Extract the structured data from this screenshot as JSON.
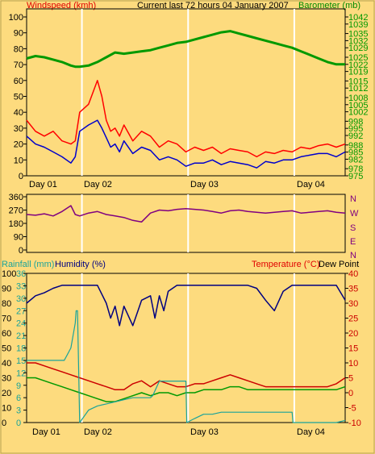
{
  "header": {
    "windspeed_label": "Windspeed (kmh)",
    "title": "Current last 72 hours 04 January 2007",
    "barometer_label": "Barometer (mb)"
  },
  "middle": {
    "compass": [
      "N",
      "W",
      "S",
      "E",
      "N"
    ]
  },
  "lower_header": {
    "rainfall_label": "Rainfall (mm)",
    "humidity_label": "Humidity (%)",
    "temperature_label": "Temperature (°C)",
    "dewpoint_label": "Dew Point"
  },
  "day_labels": [
    "Day 01",
    "Day 02",
    "Day 03",
    "Day 04"
  ],
  "colors": {
    "background": "#fddb7e",
    "wind_gust": "#ff0000",
    "wind_avg": "#0000cc",
    "barometer": "#009900",
    "direction": "#800080",
    "humidity": "#000080",
    "temperature": "#cc0000",
    "dewpoint": "#009900",
    "rainfall": "#1aa39a"
  },
  "chart_data": [
    {
      "type": "line",
      "x": "hours over last 72 hours",
      "x_ticks": [
        "Day 01",
        "Day 02",
        "Day 03",
        "Day 04"
      ],
      "x_range_hours": [
        0,
        72
      ],
      "day_boundaries_hours": [
        12.5,
        36.5,
        60.5
      ],
      "y_left": {
        "label": "Windspeed (kmh)",
        "ticks": [
          0,
          10,
          20,
          30,
          40,
          50,
          60,
          70,
          80,
          90,
          100
        ],
        "range": [
          0,
          100
        ]
      },
      "y_right": {
        "label": "Barometer (mb)",
        "ticks": [
          975,
          978,
          982,
          985,
          988,
          992,
          995,
          998,
          1002,
          1005,
          1008,
          1012,
          1015,
          1019,
          1022,
          1025,
          1029,
          1032,
          1035,
          1039,
          1042
        ],
        "range": [
          975,
          1042
        ]
      },
      "series": [
        {
          "name": "Windspeed (kmh)",
          "axis": "left",
          "kind": "gust",
          "x": [
            0,
            2,
            4,
            6,
            8,
            10,
            11,
            12,
            14,
            16,
            17,
            18,
            19,
            20,
            21,
            22,
            24,
            26,
            28,
            30,
            32,
            34,
            36,
            38,
            40,
            42,
            44,
            46,
            48,
            50,
            52,
            54,
            56,
            58,
            60,
            62,
            64,
            66,
            68,
            70,
            72
          ],
          "values": [
            35,
            28,
            25,
            28,
            22,
            20,
            22,
            40,
            45,
            60,
            50,
            35,
            28,
            30,
            25,
            32,
            22,
            28,
            25,
            18,
            22,
            20,
            15,
            18,
            16,
            18,
            14,
            17,
            16,
            15,
            12,
            15,
            14,
            16,
            15,
            18,
            17,
            19,
            20,
            18,
            20
          ]
        },
        {
          "name": "Windspeed (kmh)",
          "axis": "left",
          "kind": "average",
          "x": [
            0,
            2,
            4,
            6,
            8,
            10,
            11,
            12,
            14,
            16,
            17,
            18,
            19,
            20,
            21,
            22,
            24,
            26,
            28,
            30,
            32,
            34,
            36,
            38,
            40,
            42,
            44,
            46,
            48,
            50,
            52,
            54,
            56,
            58,
            60,
            62,
            64,
            66,
            68,
            70,
            72
          ],
          "values": [
            25,
            20,
            18,
            15,
            12,
            8,
            12,
            28,
            32,
            35,
            30,
            24,
            18,
            20,
            15,
            22,
            14,
            18,
            16,
            10,
            12,
            10,
            6,
            8,
            8,
            10,
            7,
            9,
            8,
            7,
            5,
            9,
            8,
            10,
            10,
            12,
            13,
            14,
            14,
            12,
            15
          ]
        },
        {
          "name": "Barometer (mb)",
          "axis": "right",
          "x": [
            0,
            2,
            4,
            6,
            8,
            10,
            11,
            12,
            14,
            16,
            18,
            20,
            22,
            24,
            26,
            28,
            30,
            32,
            34,
            36,
            38,
            40,
            42,
            44,
            46,
            48,
            50,
            52,
            54,
            56,
            58,
            60,
            62,
            64,
            66,
            68,
            70,
            72
          ],
          "values": [
            1024.5,
            1025.5,
            1025,
            1024,
            1023,
            1021.5,
            1021,
            1021,
            1021.5,
            1023,
            1025,
            1027,
            1026.5,
            1027,
            1027.5,
            1028,
            1029,
            1030,
            1031,
            1031.5,
            1032.5,
            1033.5,
            1034.5,
            1035.5,
            1036,
            1035,
            1034,
            1033,
            1032,
            1031,
            1030,
            1029,
            1027.5,
            1026,
            1024.5,
            1023,
            1022,
            1022
          ]
        }
      ],
      "grid": false
    },
    {
      "type": "line",
      "y_left": {
        "ticks": [
          0,
          90,
          180,
          270,
          360
        ],
        "range": [
          0,
          360
        ]
      },
      "y_right": {
        "ticks": [
          "N",
          "W",
          "S",
          "E",
          "N"
        ]
      },
      "series": [
        {
          "name": "Wind direction",
          "x": [
            0,
            2,
            4,
            6,
            8,
            10,
            11,
            12,
            14,
            16,
            18,
            20,
            22,
            24,
            26,
            28,
            30,
            32,
            34,
            36,
            38,
            40,
            42,
            44,
            46,
            48,
            50,
            52,
            54,
            56,
            58,
            60,
            62,
            64,
            66,
            68,
            70,
            72
          ],
          "values": [
            240,
            235,
            245,
            230,
            260,
            300,
            240,
            230,
            250,
            260,
            240,
            230,
            220,
            200,
            190,
            250,
            270,
            265,
            275,
            280,
            275,
            270,
            260,
            250,
            265,
            270,
            260,
            255,
            250,
            255,
            260,
            265,
            250,
            255,
            260,
            265,
            255,
            250
          ]
        }
      ]
    },
    {
      "type": "line",
      "y_left_rain": {
        "label": "Rainfall (mm)",
        "ticks": [
          0,
          3,
          6,
          9,
          12,
          15,
          18,
          21,
          24,
          27,
          30,
          33,
          36
        ],
        "range": [
          0,
          36
        ]
      },
      "y_left_humidity": {
        "label": "Humidity (%)",
        "ticks": [
          0,
          10,
          20,
          30,
          40,
          50,
          60,
          70,
          80,
          90,
          100
        ],
        "range": [
          0,
          100
        ]
      },
      "y_right": {
        "label": "Temperature (°C)",
        "ticks": [
          -10,
          -5,
          0,
          5,
          10,
          15,
          20,
          25,
          30,
          35,
          40
        ],
        "range": [
          -10,
          40
        ]
      },
      "series": [
        {
          "name": "Humidity (%)",
          "axis": "humidity",
          "x": [
            0,
            2,
            4,
            6,
            8,
            10,
            11,
            12,
            14,
            16,
            18,
            19,
            20,
            21,
            22,
            24,
            26,
            28,
            29,
            30,
            31,
            32,
            34,
            36,
            38,
            40,
            42,
            44,
            46,
            48,
            50,
            52,
            54,
            56,
            58,
            60,
            62,
            64,
            66,
            68,
            70,
            72
          ],
          "values": [
            80,
            85,
            87,
            90,
            92,
            92,
            92,
            92,
            92,
            92,
            80,
            70,
            78,
            65,
            78,
            65,
            82,
            85,
            70,
            85,
            75,
            88,
            92,
            92,
            92,
            92,
            92,
            92,
            92,
            92,
            92,
            90,
            82,
            75,
            88,
            92,
            92,
            92,
            92,
            92,
            92,
            82
          ]
        },
        {
          "name": "Temperature (°C)",
          "axis": "right",
          "x": [
            0,
            2,
            4,
            6,
            8,
            10,
            12,
            14,
            16,
            18,
            20,
            22,
            24,
            26,
            28,
            30,
            32,
            34,
            36,
            38,
            40,
            42,
            44,
            46,
            48,
            50,
            52,
            54,
            56,
            58,
            60,
            62,
            64,
            66,
            68,
            70,
            72
          ],
          "values": [
            10,
            10,
            9,
            8,
            7,
            6,
            5,
            4,
            3,
            2,
            1,
            1,
            3,
            4,
            2,
            4,
            3,
            2,
            2,
            3,
            3,
            4,
            5,
            6,
            5,
            4,
            3,
            2,
            2,
            2,
            2,
            2,
            2,
            2,
            2,
            3,
            5
          ]
        },
        {
          "name": "Dew Point",
          "axis": "right",
          "x": [
            0,
            2,
            4,
            6,
            8,
            10,
            12,
            14,
            16,
            18,
            20,
            22,
            24,
            26,
            28,
            30,
            32,
            34,
            36,
            38,
            40,
            42,
            44,
            46,
            48,
            50,
            52,
            54,
            56,
            58,
            60,
            62,
            64,
            66,
            68,
            70,
            72
          ],
          "values": [
            5,
            5,
            4,
            3,
            2,
            1,
            0,
            -1,
            -2,
            -3,
            -3,
            -2,
            -1,
            0,
            -1,
            0,
            0,
            -1,
            0,
            0,
            1,
            1,
            1,
            2,
            2,
            1,
            1,
            1,
            1,
            1,
            1,
            1,
            1,
            1,
            1,
            1,
            2
          ]
        },
        {
          "name": "Rainfall (mm)",
          "axis": "rain",
          "x": [
            0,
            8,
            8.5,
            9,
            10,
            11,
            11.2,
            11.5,
            12,
            14,
            16,
            18,
            20,
            22,
            24,
            26,
            27,
            28,
            28.5,
            30,
            32,
            34,
            36,
            36.2,
            38,
            40,
            42,
            44,
            46,
            48,
            50,
            52,
            54,
            56,
            58,
            60,
            60.2,
            62,
            64,
            66,
            68,
            70,
            72
          ],
          "values": [
            15,
            15,
            15,
            16,
            18,
            24,
            27,
            27,
            0,
            3,
            4,
            4.5,
            5,
            5.5,
            6,
            6,
            6,
            6,
            6.5,
            10,
            10,
            10,
            10,
            0,
            1,
            2,
            2,
            2.5,
            2.5,
            2.5,
            2.5,
            2.5,
            2.5,
            2.5,
            2.5,
            2.5,
            0,
            0,
            0,
            0,
            0,
            0,
            0.5
          ]
        }
      ]
    }
  ]
}
